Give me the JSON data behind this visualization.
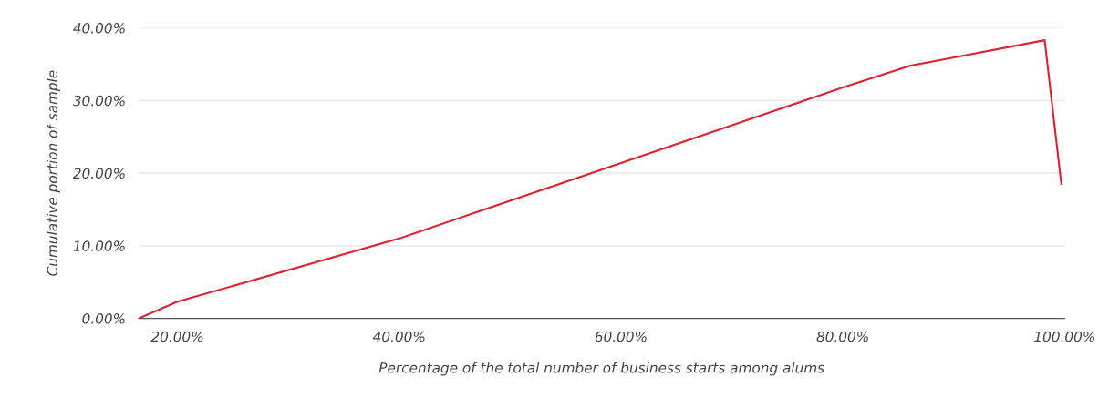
{
  "chart_data": {
    "type": "line",
    "xlabel": "Percentage of the total number of business starts among alums",
    "ylabel": "Cumulative portion of sample",
    "x": [
      16.5,
      20,
      40,
      60,
      80,
      86.1,
      98.2,
      99.7
    ],
    "series": [
      {
        "color": "#e0202e",
        "values": [
          0,
          2.3,
          11.0,
          21.4,
          31.8,
          34.8,
          38.3,
          18.5
        ]
      }
    ],
    "xlim": [
      16.5,
      100
    ],
    "xticks": [
      {
        "value": 20,
        "label": "20.00%"
      },
      {
        "value": 40,
        "label": "40.00%"
      },
      {
        "value": 60,
        "label": "60.00%"
      },
      {
        "value": 80,
        "label": "80.00%"
      },
      {
        "value": 100,
        "label": "100.00%"
      }
    ],
    "ylim": [
      0,
      40
    ],
    "yticks": [
      {
        "value": 0,
        "label": "0.00%"
      },
      {
        "value": 10,
        "label": "10.00%"
      },
      {
        "value": 20,
        "label": "20.00%"
      },
      {
        "value": 30,
        "label": "30.00%"
      },
      {
        "value": 40,
        "label": "40.00%"
      }
    ],
    "grid": "y",
    "marker": "none",
    "line_style": "solid"
  }
}
